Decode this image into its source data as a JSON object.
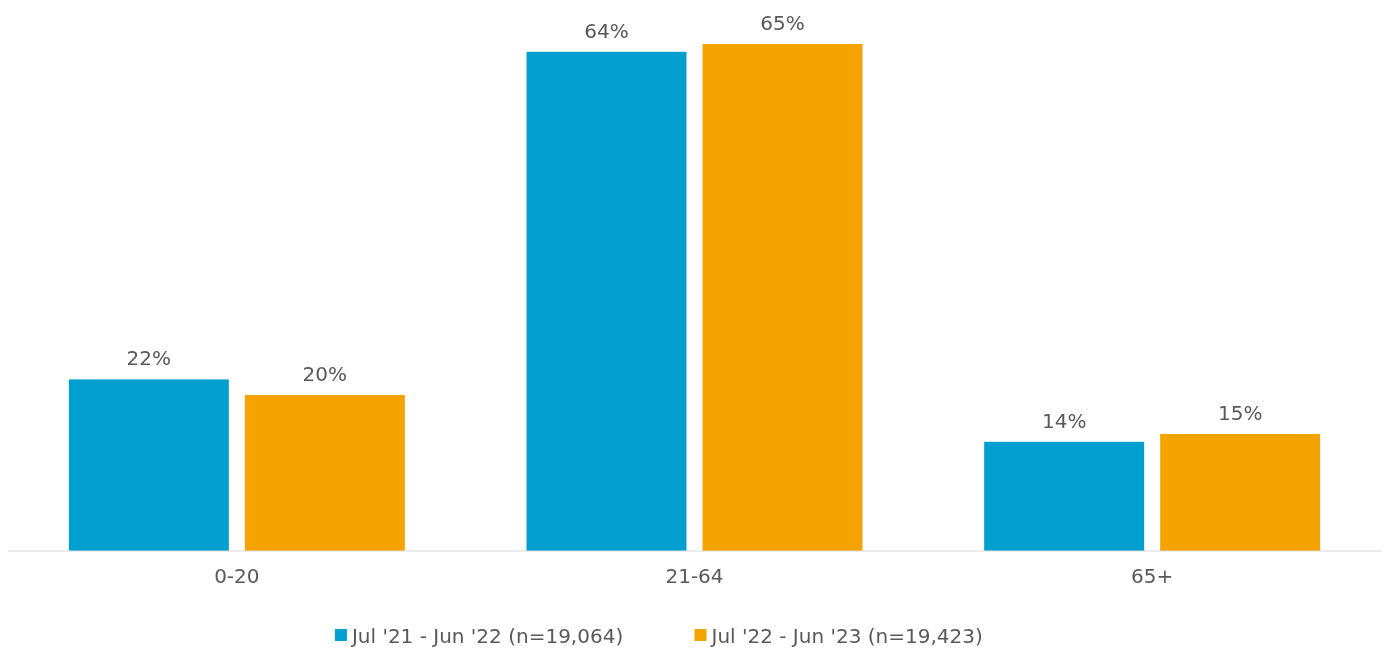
{
  "chart_data": {
    "type": "bar",
    "categories": [
      "0-20",
      "21-64",
      "65+"
    ],
    "series": [
      {
        "name": "Jul '21 - Jun '22 (n=19,064)",
        "color": "#009fcf",
        "values": [
          22,
          64,
          14
        ],
        "value_labels": [
          "22%",
          "64%",
          "14%"
        ]
      },
      {
        "name": "Jul '22 - Jun '23 (n=19,423)",
        "color": "#f4a300",
        "values": [
          20,
          65,
          15
        ],
        "value_labels": [
          "20%",
          "65%",
          "15%"
        ]
      }
    ],
    "legend": "bottom"
  }
}
